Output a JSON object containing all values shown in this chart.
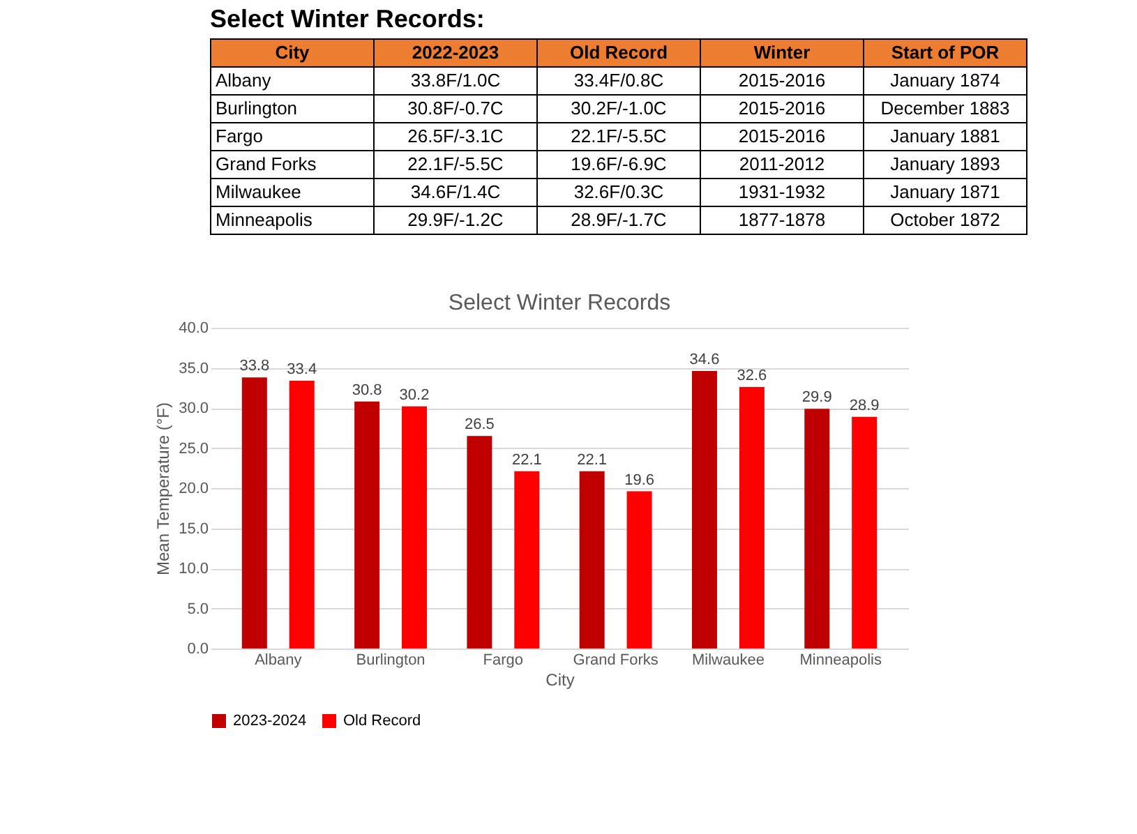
{
  "chart_data": [
    {
      "type": "other",
      "title": "Select Winter Records:",
      "categories": [
        "City",
        "2022-2023",
        "Old Record",
        "Winter",
        "Start of POR"
      ],
      "y_categories": [
        "Albany",
        "Burlington",
        "Fargo",
        "Grand Forks",
        "Milwaukee",
        "Minneapolis"
      ],
      "cell_labels": [
        [
          "33.8F/1.0C",
          "33.4F/0.8C",
          "2015-2016",
          "January 1874"
        ],
        [
          "30.8F/-0.7C",
          "30.2F/-1.0C",
          "2015-2016",
          "December 1883"
        ],
        [
          "26.5F/-3.1C",
          "22.1F/-5.5C",
          "2015-2016",
          "January 1881"
        ],
        [
          "22.1F/-5.5C",
          "19.6F/-6.9C",
          "2011-2012",
          "January 1893"
        ],
        [
          "34.6F/1.4C",
          "32.6F/0.3C",
          "1931-1932",
          "January 1871"
        ],
        [
          "29.9F/-1.2C",
          "28.9F/-1.7C",
          "1877-1878",
          "October 1872"
        ]
      ]
    },
    {
      "type": "bar",
      "title": "Select Winter Records",
      "xlabel": "City",
      "ylabel": "Mean Temperature (°F)",
      "categories": [
        "Albany",
        "Burlington",
        "Fargo",
        "Grand Forks",
        "Milwaukee",
        "Minneapolis"
      ],
      "series": [
        {
          "name": "2023-2024",
          "color": "#c00000",
          "values": [
            33.8,
            30.8,
            26.5,
            22.1,
            34.6,
            29.9
          ]
        },
        {
          "name": "Old Record",
          "color": "#ff0000",
          "values": [
            33.4,
            30.2,
            22.1,
            19.6,
            32.6,
            28.9
          ]
        }
      ],
      "ylim": [
        0,
        40
      ],
      "yticks": [
        {
          "value": 0,
          "label": "0.0"
        },
        {
          "value": 5,
          "label": "5.0"
        },
        {
          "value": 10,
          "label": "10.0"
        },
        {
          "value": 15,
          "label": "15.0"
        },
        {
          "value": 20,
          "label": "20.0"
        },
        {
          "value": 25,
          "label": "25.0"
        },
        {
          "value": 30,
          "label": "30.0"
        },
        {
          "value": 35,
          "label": "35.0"
        },
        {
          "value": 40,
          "label": "40.0"
        }
      ],
      "grid": "y",
      "legend": "bottom",
      "data_labels": true
    }
  ]
}
